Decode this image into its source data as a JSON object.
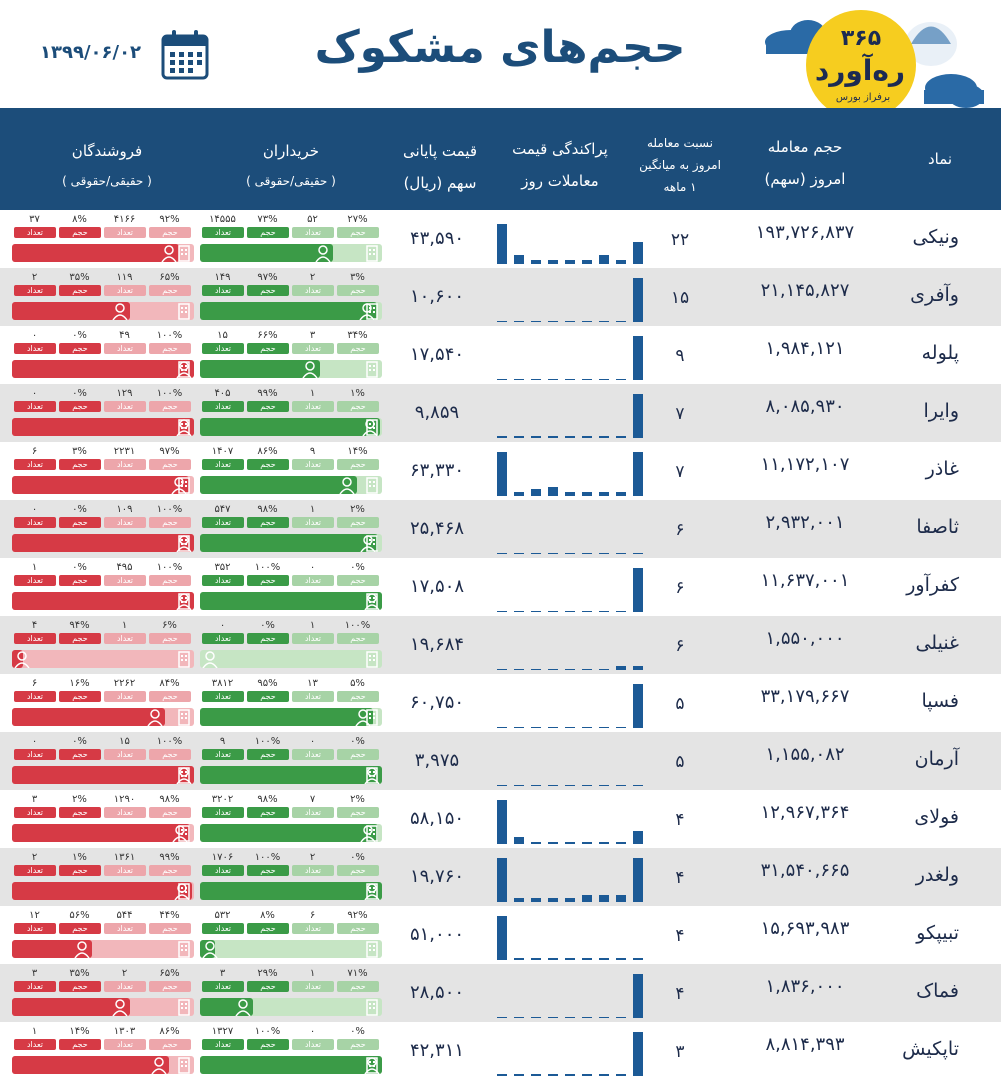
{
  "header": {
    "title": "حجم‌های مشکوک",
    "date": "۱۳۹۹/۰۶/۰۲",
    "logo": {
      "number": "۳۶۵",
      "name": "ره‌آورد",
      "tagline": "برفراز بورس"
    }
  },
  "columns": {
    "symbol": "نماد",
    "volume_l1": "حجم معامله",
    "volume_l2": "امروز (سهم)",
    "ratio_l1": "نسبت معامله",
    "ratio_l2": "امروز به میانگین",
    "ratio_l3": "۱ ماهه",
    "dist_l1": "پراکندگی قیمت",
    "dist_l2": "معاملات روز",
    "price_l1": "قیمت پایانی",
    "price_l2": "سهم (ریال)",
    "buyers_l1": "خریداران",
    "buyers_l2": "( حقیقی/حقوقی )",
    "sellers_l1": "فروشندگان",
    "sellers_l2": "( حقیقی/حقوقی )"
  },
  "labels": {
    "count": "تعداد",
    "volume": "حجم"
  },
  "colors": {
    "header_bg": "#1c4d7a",
    "buy": "#3b9b47",
    "buy_light": "#c6e5c4",
    "sell": "#d63a45",
    "sell_light": "#f2b7bb",
    "bars": "#1c5a96"
  },
  "rows": [
    {
      "symbol": "ونیکی",
      "volume": "۱۹۳,۷۲۶,۸۳۷",
      "ratio": "۲۲",
      "price": "۴۳,۵۹۰",
      "dist": [
        0.9,
        0.2,
        0.1,
        0.1,
        0.1,
        0.1,
        0.2,
        0.1,
        0.5
      ],
      "buyers": {
        "inst_pct": "۲۷%",
        "inst_count": "۵۲",
        "ind_pct": "۷۳%",
        "ind_count": "۱۴۵۵۵",
        "ind_share": 0.73
      },
      "sellers": {
        "inst_pct": "۹۲%",
        "inst_count": "۴۱۶۶",
        "ind_pct": "۸%",
        "ind_count": "۳۷",
        "ind_share": 0.92
      }
    },
    {
      "symbol": "وآفری",
      "volume": "۲۱,۱۴۵,۸۲۷",
      "ratio": "۱۵",
      "price": "۱۰,۶۰۰",
      "dist": [
        0,
        0,
        0,
        0,
        0,
        0,
        0,
        0,
        1
      ],
      "buyers": {
        "inst_pct": "۳%",
        "inst_count": "۲",
        "ind_pct": "۹۷%",
        "ind_count": "۱۴۹",
        "ind_share": 0.97
      },
      "sellers": {
        "inst_pct": "۶۵%",
        "inst_count": "۱۱۹",
        "ind_pct": "۳۵%",
        "ind_count": "۲",
        "ind_share": 0.65
      }
    },
    {
      "symbol": "پلوله",
      "volume": "۱,۹۸۴,۱۲۱",
      "ratio": "۹",
      "price": "۱۷,۵۴۰",
      "dist": [
        0,
        0,
        0,
        0,
        0,
        0,
        0,
        0,
        1
      ],
      "buyers": {
        "inst_pct": "۳۴%",
        "inst_count": "۳",
        "ind_pct": "۶۶%",
        "ind_count": "۱۵",
        "ind_share": 0.66
      },
      "sellers": {
        "inst_pct": "۱۰۰%",
        "inst_count": "۴۹",
        "ind_pct": "۰%",
        "ind_count": "۰",
        "ind_share": 1.0
      }
    },
    {
      "symbol": "وایرا",
      "volume": "۸,۰۸۵,۹۳۰",
      "ratio": "۷",
      "price": "۹,۸۵۹",
      "dist": [
        0.05,
        0.05,
        0.05,
        0.05,
        0.05,
        0.05,
        0.05,
        0.05,
        1
      ],
      "buyers": {
        "inst_pct": "۱%",
        "inst_count": "۱",
        "ind_pct": "۹۹%",
        "ind_count": "۴۰۵",
        "ind_share": 0.99
      },
      "sellers": {
        "inst_pct": "۱۰۰%",
        "inst_count": "۱۲۹",
        "ind_pct": "۰%",
        "ind_count": "۰",
        "ind_share": 1.0
      }
    },
    {
      "symbol": "غاذر",
      "volume": "۱۱,۱۷۲,۱۰۷",
      "ratio": "۷",
      "price": "۶۳,۳۳۰",
      "dist": [
        1,
        0.1,
        0.15,
        0.2,
        0.1,
        0.1,
        0.1,
        0.1,
        1
      ],
      "buyers": {
        "inst_pct": "۱۴%",
        "inst_count": "۹",
        "ind_pct": "۸۶%",
        "ind_count": "۱۴۰۷",
        "ind_share": 0.86
      },
      "sellers": {
        "inst_pct": "۹۷%",
        "inst_count": "۲۲۳۱",
        "ind_pct": "۳%",
        "ind_count": "۶",
        "ind_share": 0.97
      }
    },
    {
      "symbol": "ثاصفا",
      "volume": "۲,۹۳۲,۰۰۱",
      "ratio": "۶",
      "price": "۲۵,۴۶۸",
      "dist": [
        0,
        0,
        0,
        0,
        0,
        0,
        0,
        0,
        0
      ],
      "buyers": {
        "inst_pct": "۲%",
        "inst_count": "۱",
        "ind_pct": "۹۸%",
        "ind_count": "۵۴۷",
        "ind_share": 0.98
      },
      "sellers": {
        "inst_pct": "۱۰۰%",
        "inst_count": "۱۰۹",
        "ind_pct": "۰%",
        "ind_count": "۰",
        "ind_share": 1.0
      }
    },
    {
      "symbol": "کفرآور",
      "volume": "۱۱,۶۳۷,۰۰۱",
      "ratio": "۶",
      "price": "۱۷,۵۰۸",
      "dist": [
        0,
        0,
        0,
        0,
        0,
        0,
        0,
        0,
        1
      ],
      "buyers": {
        "inst_pct": "۰%",
        "inst_count": "۰",
        "ind_pct": "۱۰۰%",
        "ind_count": "۳۵۲",
        "ind_share": 1.0
      },
      "sellers": {
        "inst_pct": "۱۰۰%",
        "inst_count": "۴۹۵",
        "ind_pct": "۰%",
        "ind_count": "۱",
        "ind_share": 1.0
      }
    },
    {
      "symbol": "غنیلی",
      "volume": "۱,۵۵۰,۰۰۰",
      "ratio": "۶",
      "price": "۱۹,۶۸۴",
      "dist": [
        0,
        0,
        0,
        0,
        0,
        0,
        0,
        0.1,
        0.1
      ],
      "buyers": {
        "inst_pct": "۱۰۰%",
        "inst_count": "۱",
        "ind_pct": "۰%",
        "ind_count": "۰",
        "ind_share": 0.0
      },
      "sellers": {
        "inst_pct": "۶%",
        "inst_count": "۱",
        "ind_pct": "۹۴%",
        "ind_count": "۴",
        "ind_share": 0.06
      }
    },
    {
      "symbol": "فسپا",
      "volume": "۳۳,۱۷۹,۶۶۷",
      "ratio": "۵",
      "price": "۶۰,۷۵۰",
      "dist": [
        0,
        0,
        0,
        0,
        0,
        0,
        0,
        0,
        1
      ],
      "buyers": {
        "inst_pct": "۵%",
        "inst_count": "۱۳",
        "ind_pct": "۹۵%",
        "ind_count": "۳۸۱۲",
        "ind_share": 0.95
      },
      "sellers": {
        "inst_pct": "۸۴%",
        "inst_count": "۲۲۶۲",
        "ind_pct": "۱۶%",
        "ind_count": "۶",
        "ind_share": 0.84
      }
    },
    {
      "symbol": "آرمان",
      "volume": "۱,۱۵۵,۰۸۲",
      "ratio": "۵",
      "price": "۳,۹۷۵",
      "dist": [
        0,
        0,
        0,
        0,
        0,
        0,
        0,
        0,
        0
      ],
      "buyers": {
        "inst_pct": "۰%",
        "inst_count": "۰",
        "ind_pct": "۱۰۰%",
        "ind_count": "۹",
        "ind_share": 1.0
      },
      "sellers": {
        "inst_pct": "۱۰۰%",
        "inst_count": "۱۵",
        "ind_pct": "۰%",
        "ind_count": "۰",
        "ind_share": 1.0
      }
    },
    {
      "symbol": "فولای",
      "volume": "۱۲,۹۶۷,۳۶۴",
      "ratio": "۴",
      "price": "۵۸,۱۵۰",
      "dist": [
        1,
        0.15,
        0.05,
        0.05,
        0.05,
        0.05,
        0.05,
        0.05,
        0.3
      ],
      "buyers": {
        "inst_pct": "۲%",
        "inst_count": "۷",
        "ind_pct": "۹۸%",
        "ind_count": "۳۲۰۲",
        "ind_share": 0.98
      },
      "sellers": {
        "inst_pct": "۹۸%",
        "inst_count": "۱۲۹۰",
        "ind_pct": "۲%",
        "ind_count": "۳",
        "ind_share": 0.98
      }
    },
    {
      "symbol": "ولغدر",
      "volume": "۳۱,۵۴۰,۶۶۵",
      "ratio": "۴",
      "price": "۱۹,۷۶۰",
      "dist": [
        1,
        0.1,
        0.1,
        0.1,
        0.1,
        0.15,
        0.15,
        0.15,
        1
      ],
      "buyers": {
        "inst_pct": "۰%",
        "inst_count": "۲",
        "ind_pct": "۱۰۰%",
        "ind_count": "۱۷۰۶",
        "ind_share": 1.0
      },
      "sellers": {
        "inst_pct": "۹۹%",
        "inst_count": "۱۳۶۱",
        "ind_pct": "۱%",
        "ind_count": "۲",
        "ind_share": 0.99
      }
    },
    {
      "symbol": "تبیپکو",
      "volume": "۱۵,۶۹۳,۹۸۳",
      "ratio": "۴",
      "price": "۵۱,۰۰۰",
      "dist": [
        1,
        0.05,
        0.05,
        0.05,
        0.05,
        0.05,
        0.05,
        0.05,
        0.05
      ],
      "buyers": {
        "inst_pct": "۹۲%",
        "inst_count": "۶",
        "ind_pct": "۸%",
        "ind_count": "۵۳۲",
        "ind_share": 0.08
      },
      "sellers": {
        "inst_pct": "۴۴%",
        "inst_count": "۵۴۴",
        "ind_pct": "۵۶%",
        "ind_count": "۱۲",
        "ind_share": 0.44
      }
    },
    {
      "symbol": "فماک",
      "volume": "۱,۸۳۶,۰۰۰",
      "ratio": "۴",
      "price": "۲۸,۵۰۰",
      "dist": [
        0,
        0,
        0,
        0,
        0,
        0,
        0,
        0,
        1
      ],
      "buyers": {
        "inst_pct": "۷۱%",
        "inst_count": "۱",
        "ind_pct": "۲۹%",
        "ind_count": "۳",
        "ind_share": 0.29
      },
      "sellers": {
        "inst_pct": "۶۵%",
        "inst_count": "۲",
        "ind_pct": "۳۵%",
        "ind_count": "۳",
        "ind_share": 0.65
      }
    },
    {
      "symbol": "تاپکیش",
      "volume": "۸,۸۱۴,۳۹۳",
      "ratio": "۳",
      "price": "۴۲,۳۱۱",
      "dist": [
        0.05,
        0.05,
        0.05,
        0.05,
        0.05,
        0.05,
        0.05,
        0.05,
        1
      ],
      "buyers": {
        "inst_pct": "۰%",
        "inst_count": "۰",
        "ind_pct": "۱۰۰%",
        "ind_count": "۱۳۲۷",
        "ind_share": 1.0
      },
      "sellers": {
        "inst_pct": "۸۶%",
        "inst_count": "۱۳۰۳",
        "ind_pct": "۱۴%",
        "ind_count": "۱",
        "ind_share": 0.86
      }
    }
  ]
}
